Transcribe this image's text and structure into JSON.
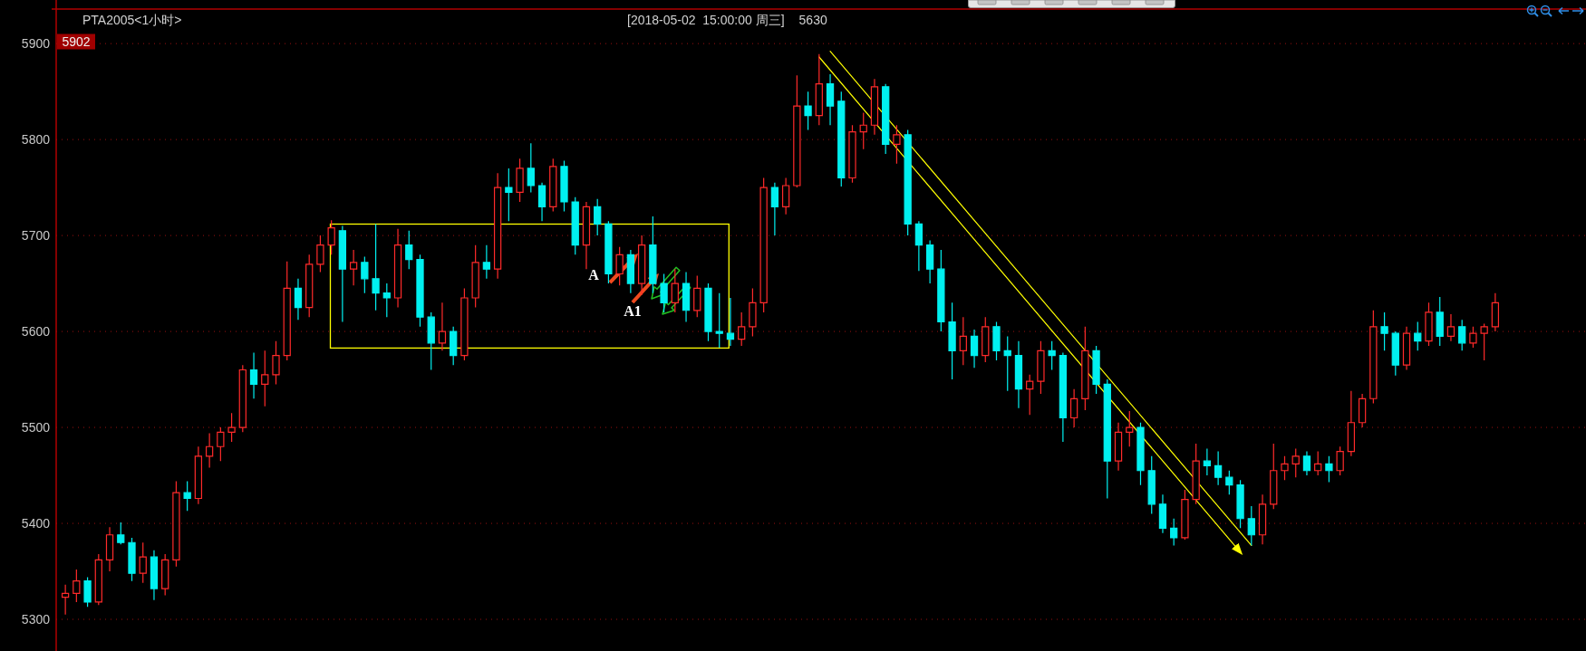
{
  "chart_data": {
    "type": "candlestick",
    "title": "PTA2005<1小时>",
    "subtitle": "[2018-05-02  15:00:00 周三]",
    "annotations": [
      "5630",
      {
        "text": "5902",
        "y": 5902
      },
      "A",
      "A1"
    ],
    "categories": [
      null,
      null,
      null,
      null,
      null,
      null,
      null,
      null,
      null,
      null,
      null,
      null,
      null,
      null,
      null,
      null,
      null,
      null,
      null,
      null,
      null,
      null,
      null,
      null,
      null,
      null,
      null,
      null,
      null,
      null,
      null,
      null,
      null,
      null,
      null,
      null,
      null,
      null,
      null,
      null,
      null,
      null,
      null,
      null,
      null,
      null,
      null,
      null,
      null,
      null,
      null,
      null,
      null,
      null,
      null,
      null,
      null,
      null,
      null,
      null,
      null,
      null,
      null,
      null,
      null,
      null,
      null,
      null,
      null,
      null,
      null,
      null,
      null,
      null,
      null,
      null,
      null,
      null,
      null,
      null,
      null,
      null,
      null,
      null,
      null,
      null,
      null,
      null,
      null,
      null,
      null,
      null,
      null,
      null,
      null,
      null,
      null,
      null,
      null,
      null,
      null,
      null,
      null,
      null,
      null,
      null,
      null,
      null,
      null,
      null,
      null,
      null,
      null,
      null,
      null,
      null,
      null,
      null,
      null,
      null,
      null,
      null,
      null,
      null,
      null,
      null,
      null,
      null,
      null,
      null
    ],
    "ohlc": [
      [
        5323,
        5336,
        5305,
        5327
      ],
      [
        5327,
        5352,
        5318,
        5340
      ],
      [
        5340,
        5344,
        5313,
        5318
      ],
      [
        5318,
        5368,
        5315,
        5362
      ],
      [
        5362,
        5396,
        5350,
        5388
      ],
      [
        5388,
        5401,
        5378,
        5380
      ],
      [
        5380,
        5385,
        5340,
        5348
      ],
      [
        5348,
        5380,
        5338,
        5365
      ],
      [
        5365,
        5372,
        5320,
        5332
      ],
      [
        5332,
        5368,
        5325,
        5362
      ],
      [
        5362,
        5444,
        5355,
        5432
      ],
      [
        5432,
        5444,
        5413,
        5426
      ],
      [
        5426,
        5480,
        5420,
        5470
      ],
      [
        5470,
        5494,
        5458,
        5480
      ],
      [
        5480,
        5500,
        5465,
        5495
      ],
      [
        5495,
        5515,
        5485,
        5500
      ],
      [
        5500,
        5565,
        5495,
        5560
      ],
      [
        5560,
        5578,
        5530,
        5545
      ],
      [
        5545,
        5580,
        5522,
        5555
      ],
      [
        5555,
        5590,
        5545,
        5575
      ],
      [
        5575,
        5673,
        5570,
        5645
      ],
      [
        5645,
        5655,
        5612,
        5625
      ],
      [
        5625,
        5680,
        5615,
        5670
      ],
      [
        5670,
        5700,
        5662,
        5690
      ],
      [
        5690,
        5716,
        5680,
        5708
      ],
      [
        5705,
        5710,
        5610,
        5665
      ],
      [
        5665,
        5685,
        5648,
        5672
      ],
      [
        5672,
        5678,
        5640,
        5655
      ],
      [
        5655,
        5712,
        5622,
        5640
      ],
      [
        5640,
        5650,
        5615,
        5635
      ],
      [
        5635,
        5707,
        5625,
        5690
      ],
      [
        5690,
        5705,
        5665,
        5675
      ],
      [
        5675,
        5680,
        5605,
        5615
      ],
      [
        5615,
        5620,
        5560,
        5588
      ],
      [
        5588,
        5630,
        5580,
        5600
      ],
      [
        5600,
        5605,
        5565,
        5575
      ],
      [
        5575,
        5645,
        5570,
        5635
      ],
      [
        5635,
        5690,
        5625,
        5672
      ],
      [
        5672,
        5690,
        5655,
        5665
      ],
      [
        5665,
        5765,
        5655,
        5750
      ],
      [
        5750,
        5770,
        5715,
        5745
      ],
      [
        5745,
        5780,
        5735,
        5770
      ],
      [
        5770,
        5796,
        5745,
        5752
      ],
      [
        5752,
        5755,
        5715,
        5730
      ],
      [
        5730,
        5780,
        5725,
        5772
      ],
      [
        5772,
        5778,
        5725,
        5735
      ],
      [
        5735,
        5740,
        5680,
        5690
      ],
      [
        5690,
        5735,
        5665,
        5730
      ],
      [
        5730,
        5738,
        5700,
        5712
      ],
      [
        5712,
        5715,
        5650,
        5660
      ],
      [
        5660,
        5688,
        5648,
        5680
      ],
      [
        5680,
        5685,
        5640,
        5650
      ],
      [
        5650,
        5700,
        5638,
        5690
      ],
      [
        5690,
        5720,
        5640,
        5650
      ],
      [
        5650,
        5660,
        5620,
        5630
      ],
      [
        5630,
        5665,
        5620,
        5650
      ],
      [
        5650,
        5662,
        5610,
        5622
      ],
      [
        5622,
        5658,
        5615,
        5645
      ],
      [
        5645,
        5650,
        5590,
        5600
      ],
      [
        5600,
        5640,
        5583,
        5598
      ],
      [
        5598,
        5635,
        5585,
        5592
      ],
      [
        5592,
        5620,
        5585,
        5605
      ],
      [
        5605,
        5645,
        5595,
        5630
      ],
      [
        5630,
        5760,
        5620,
        5750
      ],
      [
        5750,
        5755,
        5700,
        5730
      ],
      [
        5730,
        5760,
        5722,
        5752
      ],
      [
        5752,
        5867,
        5750,
        5835
      ],
      [
        5835,
        5850,
        5810,
        5825
      ],
      [
        5825,
        5889,
        5815,
        5858
      ],
      [
        5858,
        5868,
        5815,
        5835
      ],
      [
        5840,
        5850,
        5751,
        5760
      ],
      [
        5760,
        5815,
        5755,
        5808
      ],
      [
        5808,
        5828,
        5790,
        5815
      ],
      [
        5815,
        5863,
        5805,
        5855
      ],
      [
        5855,
        5858,
        5785,
        5795
      ],
      [
        5795,
        5815,
        5775,
        5805
      ],
      [
        5805,
        5810,
        5700,
        5712
      ],
      [
        5712,
        5715,
        5663,
        5690
      ],
      [
        5690,
        5695,
        5650,
        5665
      ],
      [
        5665,
        5685,
        5600,
        5610
      ],
      [
        5610,
        5630,
        5550,
        5580
      ],
      [
        5580,
        5615,
        5565,
        5595
      ],
      [
        5595,
        5602,
        5562,
        5575
      ],
      [
        5575,
        5615,
        5568,
        5605
      ],
      [
        5605,
        5610,
        5570,
        5580
      ],
      [
        5580,
        5595,
        5538,
        5575
      ],
      [
        5575,
        5590,
        5520,
        5540
      ],
      [
        5540,
        5555,
        5513,
        5548
      ],
      [
        5548,
        5590,
        5535,
        5580
      ],
      [
        5580,
        5590,
        5560,
        5575
      ],
      [
        5575,
        5578,
        5485,
        5510
      ],
      [
        5510,
        5540,
        5500,
        5530
      ],
      [
        5530,
        5605,
        5518,
        5580
      ],
      [
        5580,
        5585,
        5535,
        5545
      ],
      [
        5545,
        5550,
        5426,
        5465
      ],
      [
        5465,
        5505,
        5455,
        5495
      ],
      [
        5495,
        5517,
        5480,
        5500
      ],
      [
        5500,
        5505,
        5440,
        5455
      ],
      [
        5455,
        5470,
        5410,
        5420
      ],
      [
        5420,
        5430,
        5390,
        5395
      ],
      [
        5395,
        5405,
        5377,
        5385
      ],
      [
        5385,
        5435,
        5383,
        5425
      ],
      [
        5425,
        5483,
        5420,
        5465
      ],
      [
        5465,
        5478,
        5450,
        5460
      ],
      [
        5460,
        5475,
        5440,
        5448
      ],
      [
        5448,
        5455,
        5430,
        5440
      ],
      [
        5440,
        5445,
        5395,
        5405
      ],
      [
        5405,
        5418,
        5377,
        5388
      ],
      [
        5388,
        5430,
        5378,
        5420
      ],
      [
        5420,
        5483,
        5415,
        5455
      ],
      [
        5455,
        5470,
        5445,
        5462
      ],
      [
        5462,
        5478,
        5448,
        5470
      ],
      [
        5470,
        5475,
        5450,
        5455
      ],
      [
        5455,
        5475,
        5450,
        5462
      ],
      [
        5462,
        5470,
        5443,
        5455
      ],
      [
        5455,
        5480,
        5450,
        5475
      ],
      [
        5475,
        5538,
        5470,
        5505
      ],
      [
        5505,
        5535,
        5500,
        5530
      ],
      [
        5530,
        5622,
        5525,
        5605
      ],
      [
        5605,
        5620,
        5580,
        5598
      ],
      [
        5598,
        5600,
        5554,
        5565
      ],
      [
        5565,
        5605,
        5560,
        5598
      ],
      [
        5598,
        5610,
        5580,
        5590
      ],
      [
        5590,
        5630,
        5585,
        5620
      ],
      [
        5620,
        5636,
        5585,
        5595
      ],
      [
        5595,
        5618,
        5590,
        5605
      ],
      [
        5605,
        5612,
        5580,
        5588
      ],
      [
        5588,
        5605,
        5583,
        5598
      ],
      [
        5598,
        5608,
        5570,
        5605
      ],
      [
        5605,
        5640,
        5600,
        5630
      ]
    ],
    "series": [
      {
        "type": "line",
        "color": "#ffff00",
        "values": [
          null,
          null,
          null,
          null,
          null,
          null,
          null,
          null,
          null,
          null,
          null,
          null,
          null,
          null,
          null,
          null,
          null,
          null,
          null,
          null,
          null,
          null,
          null,
          null,
          null,
          null,
          null,
          null,
          null,
          null,
          null,
          null,
          null,
          null,
          null,
          null,
          null,
          null,
          null,
          null,
          null,
          null,
          null,
          null,
          null,
          null,
          null,
          null,
          null,
          null,
          null,
          null,
          null,
          null,
          null,
          null,
          null,
          null,
          null,
          null,
          null,
          null,
          null,
          null,
          null,
          null,
          null,
          null,
          null,
          5892,
          null,
          null,
          null,
          null,
          null,
          null,
          null,
          null,
          null,
          null,
          null,
          null,
          null,
          null,
          null,
          null,
          null,
          null,
          null,
          null,
          null,
          null,
          null,
          null,
          null,
          null,
          null,
          null,
          null,
          null,
          null,
          null,
          null,
          null,
          null,
          null,
          null,
          5377,
          null,
          null,
          null,
          null,
          null,
          null,
          null,
          null,
          null,
          null,
          null,
          null,
          null,
          null,
          null,
          null,
          null,
          null,
          null,
          null,
          null,
          null
        ]
      },
      {
        "type": "line",
        "color": "#ffff00",
        "values": [
          null,
          null,
          null,
          null,
          null,
          null,
          null,
          null,
          null,
          null,
          null,
          null,
          null,
          null,
          null,
          null,
          null,
          null,
          null,
          null,
          null,
          null,
          null,
          null,
          null,
          null,
          null,
          null,
          null,
          null,
          null,
          null,
          null,
          null,
          null,
          null,
          null,
          null,
          null,
          null,
          null,
          null,
          null,
          null,
          null,
          null,
          null,
          null,
          null,
          null,
          null,
          null,
          null,
          null,
          null,
          null,
          null,
          null,
          null,
          null,
          null,
          null,
          null,
          null,
          null,
          null,
          null,
          null,
          5886,
          null,
          null,
          null,
          null,
          null,
          null,
          null,
          null,
          null,
          null,
          null,
          null,
          null,
          null,
          null,
          null,
          null,
          null,
          null,
          null,
          null,
          null,
          null,
          null,
          null,
          null,
          null,
          null,
          null,
          null,
          null,
          null,
          null,
          null,
          null,
          null,
          null,
          5370,
          null,
          null,
          null,
          null,
          null,
          null,
          null,
          null,
          null,
          null,
          null,
          null,
          null,
          null,
          null,
          null,
          null,
          null,
          null,
          null,
          null,
          null,
          null
        ]
      }
    ],
    "ylim": [
      5267,
      5936
    ],
    "yticks": [
      5300,
      5400,
      5500,
      5600,
      5700,
      5800,
      5900
    ],
    "grid": "y",
    "tick_labels": "y"
  }
}
